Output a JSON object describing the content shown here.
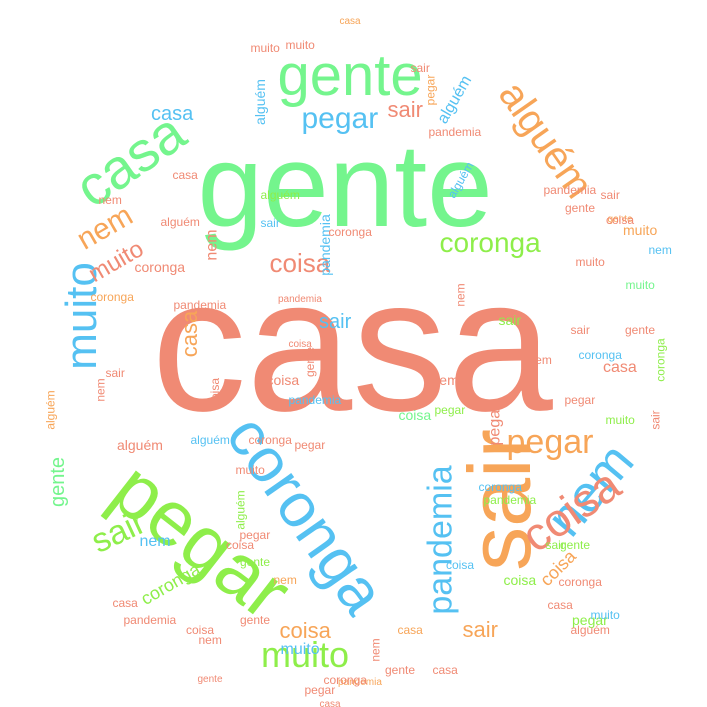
{
  "palette": {
    "salmon": "#f08a74",
    "green": "#74f58d",
    "lime": "#8eee4a",
    "blue": "#55c1f2",
    "orange": "#f7a558"
  },
  "words": [
    {
      "text": "casa",
      "color": "salmon"
    },
    {
      "text": "gente",
      "color": "green"
    },
    {
      "text": "pegar",
      "color": "lime"
    },
    {
      "text": "coronga",
      "color": "blue"
    },
    {
      "text": "sair",
      "color": "orange"
    },
    {
      "text": "casa",
      "color": "green"
    },
    {
      "text": "gente",
      "color": "green"
    },
    {
      "text": "nem",
      "color": "blue"
    },
    {
      "text": "coisa",
      "color": "salmon"
    },
    {
      "text": "muito",
      "color": "blue"
    },
    {
      "text": "alguém",
      "color": "orange"
    },
    {
      "text": "pandemia",
      "color": "blue"
    },
    {
      "text": "sair",
      "color": "lime"
    },
    {
      "text": "pegar",
      "color": "orange"
    },
    {
      "text": "muito",
      "color": "lime"
    },
    {
      "text": "nem",
      "color": "orange"
    },
    {
      "text": "pegar",
      "color": "blue"
    },
    {
      "text": "coronga",
      "color": "lime"
    },
    {
      "text": "coisa",
      "color": "salmon"
    },
    {
      "text": "muito",
      "color": "salmon"
    },
    {
      "text": "casa",
      "color": "blue"
    },
    {
      "text": "pandemia",
      "color": "blue"
    },
    {
      "text": "coronga",
      "color": "lime"
    },
    {
      "text": "coisa",
      "color": "orange"
    },
    {
      "text": "gente",
      "color": "green"
    },
    {
      "text": "sair",
      "color": "orange"
    },
    {
      "text": "muito",
      "color": "blue"
    },
    {
      "text": "nem",
      "color": "blue"
    },
    {
      "text": "coisa",
      "color": "orange"
    },
    {
      "text": "muito",
      "color": "salmon"
    },
    {
      "text": "sair",
      "color": "lime"
    },
    {
      "text": "nem",
      "color": "salmon"
    },
    {
      "text": "alguém",
      "color": "blue"
    },
    {
      "text": "nem",
      "color": "salmon"
    },
    {
      "text": "casa",
      "color": "orange"
    },
    {
      "text": "coisa",
      "color": "salmon"
    },
    {
      "text": "sair",
      "color": "blue"
    },
    {
      "text": "sair",
      "color": "salmon"
    },
    {
      "text": "pegar",
      "color": "salmon"
    },
    {
      "text": "alguém",
      "color": "blue"
    },
    {
      "text": "coronga",
      "color": "salmon"
    },
    {
      "text": "pandemia",
      "color": "salmon"
    },
    {
      "text": "gente",
      "color": "salmon"
    },
    {
      "text": "casa",
      "color": "salmon"
    },
    {
      "text": "nem",
      "color": "salmon"
    },
    {
      "text": "coisa",
      "color": "green"
    },
    {
      "text": "coronga",
      "color": "blue"
    },
    {
      "text": "muito",
      "color": "orange"
    },
    {
      "text": "sair",
      "color": "blue"
    },
    {
      "text": "alguém",
      "color": "salmon"
    },
    {
      "text": "pegar",
      "color": "lime"
    },
    {
      "text": "gente",
      "color": "lime"
    },
    {
      "text": "pandemia",
      "color": "lime"
    },
    {
      "text": "casa",
      "color": "orange"
    },
    {
      "text": "alguém",
      "color": "blue"
    },
    {
      "text": "gente",
      "color": "salmon"
    },
    {
      "text": "coronga",
      "color": "blue"
    },
    {
      "text": "coisa",
      "color": "lime"
    },
    {
      "text": "nem",
      "color": "salmon"
    },
    {
      "text": "pegar",
      "color": "salmon"
    },
    {
      "text": "sair",
      "color": "salmon"
    },
    {
      "text": "muito",
      "color": "green"
    },
    {
      "text": "casa",
      "color": "orange"
    },
    {
      "text": "pandemia",
      "color": "orange"
    },
    {
      "text": "alguém",
      "color": "lime"
    },
    {
      "text": "coronga",
      "color": "orange"
    },
    {
      "text": "gente",
      "color": "salmon"
    },
    {
      "text": "nem",
      "color": "blue"
    },
    {
      "text": "coisa",
      "color": "salmon"
    },
    {
      "text": "muito",
      "color": "salmon"
    },
    {
      "text": "sair",
      "color": "lime"
    },
    {
      "text": "pegar",
      "color": "salmon"
    },
    {
      "text": "casa",
      "color": "salmon"
    },
    {
      "text": "alguém",
      "color": "orange"
    },
    {
      "text": "gente",
      "color": "lime"
    },
    {
      "text": "coronga",
      "color": "salmon"
    },
    {
      "text": "pandemia",
      "color": "blue"
    },
    {
      "text": "coisa",
      "color": "salmon"
    },
    {
      "text": "nem",
      "color": "orange"
    },
    {
      "text": "muito",
      "color": "blue"
    },
    {
      "text": "sair",
      "color": "salmon"
    },
    {
      "text": "casa",
      "color": "salmon"
    },
    {
      "text": "gente",
      "color": "orange"
    },
    {
      "text": "pegar",
      "color": "lime"
    },
    {
      "text": "coronga",
      "color": "lime"
    },
    {
      "text": "alguém",
      "color": "blue"
    },
    {
      "text": "pandemia",
      "color": "salmon"
    },
    {
      "text": "coisa",
      "color": "blue"
    },
    {
      "text": "nem",
      "color": "salmon"
    },
    {
      "text": "muito",
      "color": "salmon"
    },
    {
      "text": "sair",
      "color": "salmon"
    },
    {
      "text": "casa",
      "color": "salmon"
    },
    {
      "text": "gente",
      "color": "salmon"
    },
    {
      "text": "pegar",
      "color": "salmon"
    },
    {
      "text": "coronga",
      "color": "salmon"
    },
    {
      "text": "alguém",
      "color": "lime"
    },
    {
      "text": "pandemia",
      "color": "salmon"
    },
    {
      "text": "coisa",
      "color": "salmon"
    },
    {
      "text": "nem",
      "color": "salmon"
    },
    {
      "text": "muito",
      "color": "lime"
    },
    {
      "text": "sair",
      "color": "salmon"
    },
    {
      "text": "casa",
      "color": "salmon"
    },
    {
      "text": "gente",
      "color": "salmon"
    },
    {
      "text": "pegar",
      "color": "orange"
    },
    {
      "text": "coronga",
      "color": "salmon"
    },
    {
      "text": "alguém",
      "color": "salmon"
    },
    {
      "text": "pandemia",
      "color": "salmon"
    },
    {
      "text": "coisa",
      "color": "salmon"
    },
    {
      "text": "nem",
      "color": "salmon"
    },
    {
      "text": "muito",
      "color": "salmon"
    },
    {
      "text": "sair",
      "color": "salmon"
    },
    {
      "text": "casa",
      "color": "salmon"
    },
    {
      "text": "gente",
      "color": "salmon"
    },
    {
      "text": "pegar",
      "color": "salmon"
    },
    {
      "text": "coronga",
      "color": "salmon"
    },
    {
      "text": "alguém",
      "color": "salmon"
    },
    {
      "text": "pandemia",
      "color": "salmon"
    },
    {
      "text": "coisa",
      "color": "salmon"
    },
    {
      "text": "nem",
      "color": "salmon"
    },
    {
      "text": "muito",
      "color": "salmon"
    }
  ]
}
